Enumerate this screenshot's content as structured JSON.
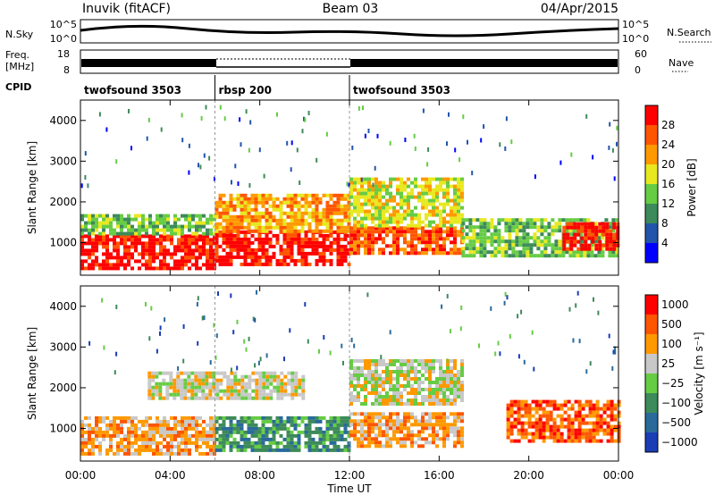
{
  "header": {
    "station": "Inuvik (fitACF)",
    "beam": "Beam 03",
    "date": "04/Apr/2015"
  },
  "strip": {
    "nsky_label": "N.Sky",
    "nsky_ticks": [
      "10^5",
      "10^0"
    ],
    "nsearch_label": "N.Search",
    "nsearch_ticks": [
      "10^5",
      "10^0"
    ],
    "freq_label": "Freq.",
    "freq_unit": "[MHz]",
    "freq_ticks": [
      "18",
      "8"
    ],
    "nave_label": "Nave",
    "nave_ticks": [
      "60",
      "0"
    ],
    "cpid_label": "CPID",
    "cpid_segments": [
      {
        "name": "twofsound 3503",
        "start": 0,
        "end": 6
      },
      {
        "name": "rbsp 200",
        "start": 6,
        "end": 12
      },
      {
        "name": "twofsound 3503",
        "start": 12,
        "end": 24
      }
    ]
  },
  "chart_data": [
    {
      "type": "heatmap",
      "name": "power-panel",
      "ylabel": "Slant Range [km]",
      "xlabel": "",
      "xlim": [
        0,
        24
      ],
      "ylim": [
        200,
        4500
      ],
      "yticks": [
        "1000",
        "2000",
        "3000",
        "4000"
      ],
      "colorbar": {
        "label": "Power [dB]",
        "ticks": [
          "4",
          "8",
          "12",
          "16",
          "20",
          "24",
          "28"
        ],
        "colors": [
          "#0000ff",
          "#2255aa",
          "#3d8a5a",
          "#66cc44",
          "#e8e820",
          "#ff9900",
          "#ff5500",
          "#ff0000"
        ]
      },
      "bands": [
        {
          "t0": 0.0,
          "t1": 6.0,
          "r0": 400,
          "r1": 1200,
          "level": 7
        },
        {
          "t0": 0.0,
          "t1": 6.0,
          "r0": 1200,
          "r1": 1700,
          "level": 3
        },
        {
          "t0": 6.0,
          "t1": 12.0,
          "r0": 500,
          "r1": 1300,
          "level": 7
        },
        {
          "t0": 6.0,
          "t1": 12.0,
          "r0": 1300,
          "r1": 2200,
          "level": 5
        },
        {
          "t0": 12.0,
          "t1": 17.0,
          "r0": 700,
          "r1": 1400,
          "level": 6
        },
        {
          "t0": 12.0,
          "t1": 17.0,
          "r0": 1400,
          "r1": 2600,
          "level": 4
        },
        {
          "t0": 17.0,
          "t1": 24.0,
          "r0": 700,
          "r1": 1600,
          "level": 3
        },
        {
          "t0": 21.5,
          "t1": 24.0,
          "r0": 800,
          "r1": 1500,
          "level": 7
        }
      ]
    },
    {
      "type": "heatmap",
      "name": "velocity-panel",
      "ylabel": "Slant Range [km]",
      "xlabel": "Time UT",
      "xlim": [
        0,
        24
      ],
      "ylim": [
        200,
        4500
      ],
      "yticks": [
        "1000",
        "2000",
        "3000",
        "4000"
      ],
      "xticks": [
        "00:00",
        "04:00",
        "08:00",
        "12:00",
        "16:00",
        "20:00",
        "00:00"
      ],
      "colorbar": {
        "label": "Velocity [m s⁻¹]",
        "ticks": [
          "1000",
          "500",
          "100",
          "25",
          "−25",
          "−100",
          "−500",
          "−1000"
        ],
        "colors": [
          "#1a3db5",
          "#2a6a9a",
          "#3d8a5a",
          "#66cc44",
          "#c8c8c8",
          "#ff9900",
          "#ff5500",
          "#ff0000"
        ]
      },
      "bands": [
        {
          "t0": 0.0,
          "t1": 6.0,
          "r0": 400,
          "r1": 1300,
          "level": 5
        },
        {
          "t0": 3.0,
          "t1": 10.0,
          "r0": 1700,
          "r1": 2400,
          "level": 4
        },
        {
          "t0": 6.0,
          "t1": 12.0,
          "r0": 500,
          "r1": 1300,
          "level": 2
        },
        {
          "t0": 12.0,
          "t1": 17.0,
          "r0": 600,
          "r1": 1400,
          "level": 5
        },
        {
          "t0": 12.0,
          "t1": 17.0,
          "r0": 1600,
          "r1": 2700,
          "level": 4
        },
        {
          "t0": 19.0,
          "t1": 24.0,
          "r0": 700,
          "r1": 1700,
          "level": 6
        }
      ]
    }
  ]
}
